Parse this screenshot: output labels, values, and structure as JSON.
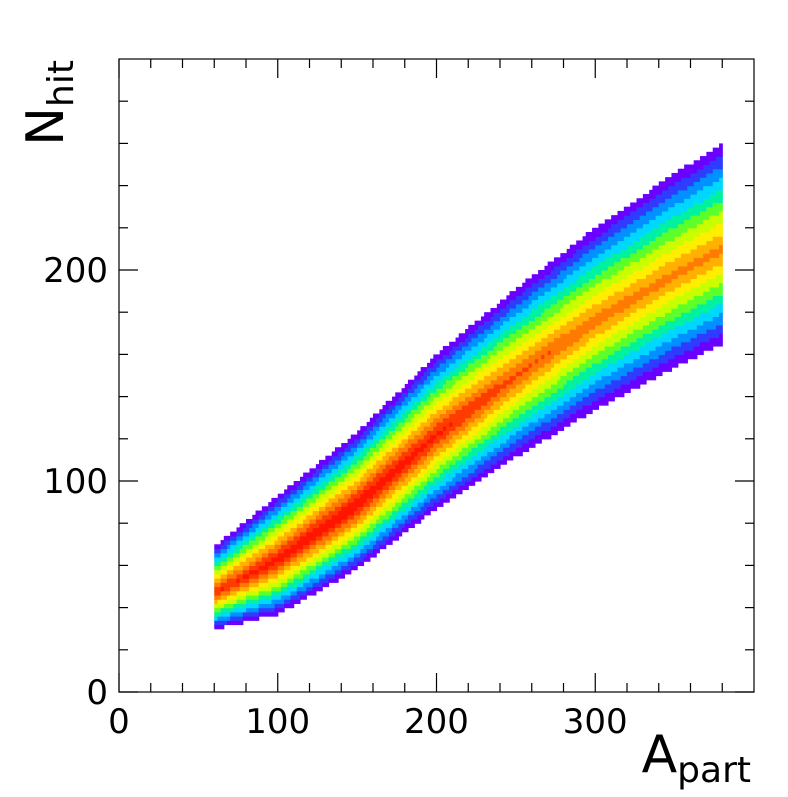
{
  "chart_data": {
    "type": "heatmap",
    "title": "",
    "xlabel": {
      "main": "A",
      "sub": "part"
    },
    "ylabel": {
      "main": "N",
      "sub": "hit"
    },
    "xlim": [
      0,
      400
    ],
    "ylim": [
      0,
      300
    ],
    "xticks": [
      "0",
      "100",
      "200",
      "300"
    ],
    "xtick_values": [
      0,
      100,
      200,
      300
    ],
    "yticks": [
      "0",
      "100",
      "200"
    ],
    "ytick_values": [
      0,
      100,
      200
    ],
    "x_domain": [
      60,
      380
    ],
    "ridge": [
      {
        "x": 60,
        "y": 47
      },
      {
        "x": 100,
        "y": 63
      },
      {
        "x": 150,
        "y": 89
      },
      {
        "x": 200,
        "y": 122
      },
      {
        "x": 250,
        "y": 150
      },
      {
        "x": 300,
        "y": 176
      },
      {
        "x": 350,
        "y": 198
      },
      {
        "x": 380,
        "y": 210
      }
    ],
    "spread_up": [
      {
        "x": 60,
        "y": 22
      },
      {
        "x": 100,
        "y": 30
      },
      {
        "x": 200,
        "y": 38
      },
      {
        "x": 300,
        "y": 44
      },
      {
        "x": 380,
        "y": 50
      }
    ],
    "spread_down": [
      {
        "x": 60,
        "y": 17
      },
      {
        "x": 100,
        "y": 26
      },
      {
        "x": 200,
        "y": 35
      },
      {
        "x": 300,
        "y": 42
      },
      {
        "x": 380,
        "y": 45
      }
    ],
    "color_levels": [
      "#6a00ff",
      "#2f3cff",
      "#0090ff",
      "#00d7ff",
      "#00f2a0",
      "#5cff2a",
      "#c8ff00",
      "#ffee00",
      "#ffb000",
      "#ff7a00",
      "#ff3c00",
      "#ff1500"
    ],
    "grid": false,
    "legend": "none"
  }
}
